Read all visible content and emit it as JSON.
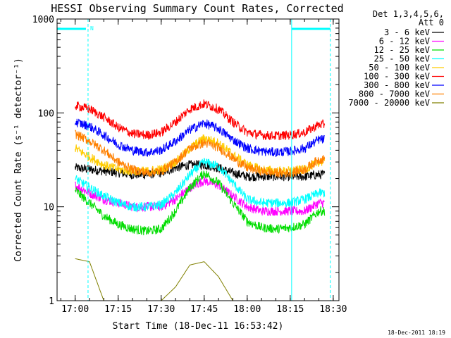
{
  "chart_data": {
    "type": "line",
    "title": "HESSI Observing Summary Count Rates, Corrected",
    "xlabel": "Start Time (18-Dec-11 16:53:42)",
    "ylabel": "Corrected Count Rate (s⁻¹ detector⁻¹)",
    "yscale": "log",
    "ylim": [
      1,
      1000
    ],
    "xlim": [
      "16:53:42",
      "18:32:00"
    ],
    "x_ticks": [
      "17:00",
      "17:15",
      "17:30",
      "17:45",
      "18:00",
      "18:15",
      "18:30"
    ],
    "y_ticks": [
      "1",
      "10",
      "100",
      "1000"
    ],
    "legend_header": [
      "Det 1,3,4,5,6,",
      "Att 0"
    ],
    "legend_position": "top-right",
    "footer_timestamp": "18-Dec-2011 18:19",
    "attenuator_flags": {
      "left_label": "N",
      "left_dashed_line": "17:04:30",
      "right_solid_line": "18:15:30",
      "right_dashed_line": "18:29:00"
    },
    "x_minutes": [
      0,
      5,
      10,
      15,
      20,
      25,
      30,
      35,
      40,
      45,
      50,
      55,
      60,
      65,
      70,
      75,
      80,
      85
    ],
    "x_axis_start": "16:53:42",
    "sunlit_window": [
      "17:00:00",
      "18:27:00"
    ],
    "series": [
      {
        "name": "3 - 6 keV",
        "color": "#000000",
        "values": [
          26,
          25,
          24,
          23,
          22,
          22,
          23,
          26,
          28,
          28,
          26,
          23,
          21,
          21,
          21,
          21,
          21,
          22
        ]
      },
      {
        "name": "6 - 12 keV",
        "color": "#ff00ff",
        "values": [
          17,
          14,
          12,
          11,
          10,
          10,
          10,
          12,
          16,
          19,
          17,
          13,
          10,
          9,
          9,
          9,
          9,
          11
        ]
      },
      {
        "name": "12 - 25 keV",
        "color": "#00dd00",
        "values": [
          15,
          11,
          8,
          6.5,
          5.8,
          5.5,
          5.8,
          9,
          16,
          23,
          18,
          11,
          7,
          6,
          5.8,
          6,
          6.5,
          9
        ]
      },
      {
        "name": "25 - 50 keV",
        "color": "#00ffff",
        "values": [
          20,
          16,
          13,
          11,
          10,
          10,
          10.5,
          14,
          22,
          30,
          27,
          18,
          12,
          11,
          11,
          11,
          12,
          14
        ]
      },
      {
        "name": "50 - 100 keV",
        "color": "#ffcc00",
        "values": [
          42,
          34,
          28,
          25,
          24,
          24,
          25,
          30,
          42,
          54,
          48,
          36,
          28,
          25,
          24,
          24,
          25,
          30
        ]
      },
      {
        "name": "100 - 300 keV",
        "color": "#ff0000",
        "values": [
          120,
          110,
          90,
          70,
          60,
          58,
          62,
          80,
          110,
          125,
          110,
          80,
          62,
          58,
          57,
          58,
          62,
          75
        ]
      },
      {
        "name": "300 - 800 keV",
        "color": "#0000ff",
        "values": [
          80,
          72,
          58,
          46,
          40,
          38,
          40,
          50,
          66,
          78,
          68,
          52,
          42,
          39,
          38,
          39,
          42,
          52
        ]
      },
      {
        "name": "800 - 7000 keV",
        "color": "#ff8000",
        "values": [
          60,
          50,
          40,
          30,
          25,
          23,
          24,
          30,
          42,
          48,
          43,
          33,
          26,
          24,
          23,
          23,
          25,
          32
        ]
      },
      {
        "name": "7000 - 20000 keV",
        "color": "#808000",
        "values": [
          2.8,
          2.6,
          1,
          1,
          1,
          1,
          1,
          1.4,
          2.4,
          2.6,
          1.8,
          1,
          1,
          1,
          1,
          1,
          1,
          1
        ]
      }
    ]
  }
}
